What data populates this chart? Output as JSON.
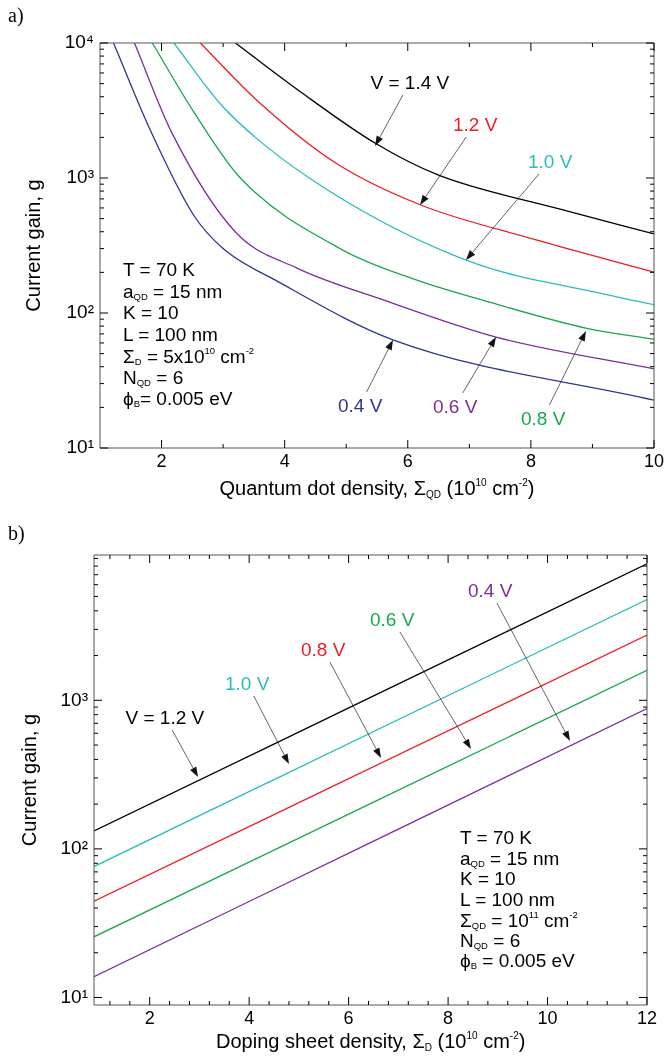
{
  "chart_data": [
    {
      "type": "line",
      "title": "a)",
      "xlabel": "Quantum dot density, Σ$_{QD}$ (10$^{10}$ cm$^{-2}$)",
      "ylabel": "Current gain, g",
      "log": "y",
      "marker": "none",
      "legend": false,
      "xlim": [
        1,
        10
      ],
      "xticks": [
        2,
        {
          "value": 3,
          "label": null
        },
        4,
        {
          "value": 5,
          "label": null
        },
        6,
        {
          "value": 7,
          "label": null
        },
        8,
        {
          "value": 9,
          "label": null
        },
        10
      ],
      "ylim": [
        10,
        10000
      ],
      "yticks": [
        {
          "value": 10,
          "label": "10¹"
        },
        {
          "value": 20,
          "label": null
        },
        {
          "value": 30,
          "label": null
        },
        {
          "value": 40,
          "label": null
        },
        {
          "value": 50,
          "label": null
        },
        {
          "value": 60,
          "label": null
        },
        {
          "value": 70,
          "label": null
        },
        {
          "value": 80,
          "label": null
        },
        {
          "value": 90,
          "label": null
        },
        {
          "value": 100,
          "label": "10²"
        },
        {
          "value": 200,
          "label": null
        },
        {
          "value": 300,
          "label": null
        },
        {
          "value": 400,
          "label": null
        },
        {
          "value": 500,
          "label": null
        },
        {
          "value": 600,
          "label": null
        },
        {
          "value": 700,
          "label": null
        },
        {
          "value": 800,
          "label": null
        },
        {
          "value": 900,
          "label": null
        },
        {
          "value": 1000,
          "label": "10³"
        },
        {
          "value": 2000,
          "label": null
        },
        {
          "value": 3000,
          "label": null
        },
        {
          "value": 4000,
          "label": null
        },
        {
          "value": 5000,
          "label": null
        },
        {
          "value": 6000,
          "label": null
        },
        {
          "value": 7000,
          "label": null
        },
        {
          "value": 8000,
          "label": null
        },
        {
          "value": 9000,
          "label": null
        },
        {
          "value": 10000,
          "label": "10⁴"
        }
      ],
      "series": [
        {
          "color": "#000000",
          "x": [
            3.2,
            4.26,
            5.48,
            6.5,
            8.46,
            10
          ],
          "values": [
            10000,
            4340,
            1800,
            1050,
            590,
            385
          ]
        },
        {
          "color": "#ee1c25",
          "x": [
            2.63,
            3.56,
            4.83,
            6.21,
            8.1,
            10
          ],
          "values": [
            10000,
            3720,
            1290,
            631,
            347,
            201
          ]
        },
        {
          "color": "#2bbcbc",
          "x": [
            2.2,
            3.0,
            4.4,
            6.96,
            9.29,
            10
          ],
          "values": [
            10000,
            3360,
            1000,
            245,
            135,
            115
          ]
        },
        {
          "color": "#17a84b",
          "x": [
            1.85,
            2.52,
            3.28,
            4.96,
            6.15,
            7.2,
            8.91,
            10
          ],
          "values": [
            10000,
            3100,
            1000,
            290,
            175,
            125,
            77,
            64
          ]
        },
        {
          "color": "#7d2d97",
          "x": [
            1.56,
            2.17,
            3.2,
            4.2,
            5.6,
            7.45,
            10
          ],
          "values": [
            10000,
            2150,
            398,
            215,
            125,
            66,
            38.5
          ]
        },
        {
          "color": "#2d3592",
          "x": [
            1.22,
            1.81,
            2.52,
            3.0,
            3.85,
            5.77,
            10
          ],
          "values": [
            10000,
            2300,
            532,
            300,
            175,
            63,
            22.6
          ]
        }
      ],
      "annotations": [
        "V = 1.4 V",
        "1.2 V",
        "1.0 V",
        "0.8 V",
        "0.6 V",
        "0.4 V",
        "T = 70 K",
        "a$_{QD}$ = 15 nm",
        "K = 10",
        "L = 100 nm",
        "Σ$_{D}$ = 5x10$^{10}$ cm$^{-2}$",
        "N$_{QD}$ = 6",
        "ϕ$_{B}$= 0.005 eV"
      ]
    },
    {
      "type": "line",
      "title": "b)",
      "xlabel": "Doping sheet density, Σ$_{D}$ (10$^{10}$ cm$^{-2}$)",
      "ylabel": "Current gain, g",
      "log": "y",
      "marker": "none",
      "legend": false,
      "xlim": [
        0.88,
        12
      ],
      "xticks": [
        {
          "value": 1.2,
          "label": null
        },
        {
          "value": 1.6,
          "label": null
        },
        2,
        {
          "value": 2.4,
          "label": null
        },
        {
          "value": 2.8,
          "label": null
        },
        {
          "value": 3.2,
          "label": null
        },
        {
          "value": 3.6,
          "label": null
        },
        4,
        {
          "value": 4.4,
          "label": null
        },
        {
          "value": 4.8,
          "label": null
        },
        {
          "value": 5.2,
          "label": null
        },
        {
          "value": 5.6,
          "label": null
        },
        6,
        {
          "value": 6.4,
          "label": null
        },
        {
          "value": 6.8,
          "label": null
        },
        {
          "value": 7.2,
          "label": null
        },
        {
          "value": 7.6,
          "label": null
        },
        8,
        {
          "value": 8.4,
          "label": null
        },
        {
          "value": 8.8,
          "label": null
        },
        {
          "value": 9.2,
          "label": null
        },
        {
          "value": 9.6,
          "label": null
        },
        10,
        {
          "value": 10.4,
          "label": null
        },
        {
          "value": 10.8,
          "label": null
        },
        {
          "value": 11.2,
          "label": null
        },
        {
          "value": 11.6,
          "label": null
        },
        12
      ],
      "ylim": [
        8.9,
        9500
      ],
      "yticks": [
        {
          "value": 10,
          "label": "10¹"
        },
        {
          "value": 20,
          "label": null
        },
        {
          "value": 30,
          "label": null
        },
        {
          "value": 40,
          "label": null
        },
        {
          "value": 50,
          "label": null
        },
        {
          "value": 60,
          "label": null
        },
        {
          "value": 70,
          "label": null
        },
        {
          "value": 80,
          "label": null
        },
        {
          "value": 90,
          "label": null
        },
        {
          "value": 100,
          "label": "10²"
        },
        {
          "value": 200,
          "label": null
        },
        {
          "value": 300,
          "label": null
        },
        {
          "value": 400,
          "label": null
        },
        {
          "value": 500,
          "label": null
        },
        {
          "value": 600,
          "label": null
        },
        {
          "value": 700,
          "label": null
        },
        {
          "value": 800,
          "label": null
        },
        {
          "value": 900,
          "label": null
        },
        {
          "value": 1000,
          "label": "10³"
        },
        {
          "value": 2000,
          "label": null
        },
        {
          "value": 3000,
          "label": null
        },
        {
          "value": 4000,
          "label": null
        },
        {
          "value": 5000,
          "label": null
        },
        {
          "value": 6000,
          "label": null
        },
        {
          "value": 7000,
          "label": null
        },
        {
          "value": 8000,
          "label": null
        },
        {
          "value": 9000,
          "label": null
        }
      ],
      "series": [
        {
          "color": "#000000",
          "x": [
            0.88,
            12
          ],
          "values": [
            132,
            8280
          ]
        },
        {
          "color": "#2bbcbc",
          "x": [
            0.88,
            12
          ],
          "values": [
            76,
            4770
          ]
        },
        {
          "color": "#ee1c25",
          "x": [
            0.88,
            12
          ],
          "values": [
            44.4,
            2750
          ]
        },
        {
          "color": "#17a84b",
          "x": [
            0.88,
            12
          ],
          "values": [
            25.6,
            1590
          ]
        },
        {
          "color": "#7d2d97",
          "x": [
            0.88,
            12
          ],
          "values": [
            13.8,
            880
          ]
        }
      ],
      "annotations": [
        "V = 1.2 V",
        "1.0 V",
        "0.8 V",
        "0.6 V",
        "0.4 V",
        "T = 70 K",
        "a$_{QD}$ = 15 nm",
        "K = 10",
        "L = 100 nm",
        "Σ$_{QD}$ = 10$^{11}$ cm$^{-2}$",
        "N$_{QD}$ = 6",
        "ϕ$_{B}$ = 0.005 eV"
      ]
    }
  ]
}
